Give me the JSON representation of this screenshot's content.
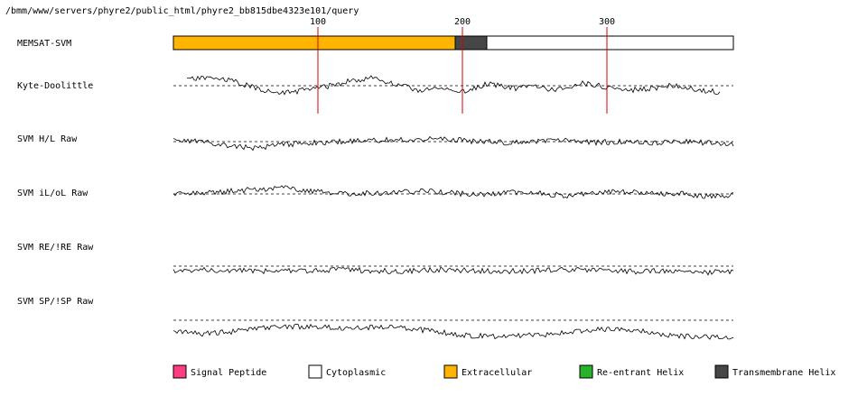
{
  "header": {
    "path": "/bmm/www/servers/phyre2/public_html/phyre2_bb815dbe4323e101/query"
  },
  "ticks": [
    "100",
    "200",
    "300"
  ],
  "tracks": [
    {
      "key": "memsat",
      "label": "MEMSAT-SVM"
    },
    {
      "key": "kd",
      "label": "Kyte-Doolittle"
    },
    {
      "key": "hl",
      "label": "SVM H/L Raw"
    },
    {
      "key": "ilol",
      "label": "SVM iL/oL Raw"
    },
    {
      "key": "reire",
      "label": "SVM RE/!RE Raw"
    },
    {
      "key": "spisp",
      "label": "SVM SP/!SP Raw"
    }
  ],
  "topology": [
    {
      "type": "Extracellular",
      "start": 1,
      "end": 195
    },
    {
      "type": "Transmembrane Helix",
      "start": 196,
      "end": 217
    },
    {
      "type": "Cytoplasmic",
      "start": 218,
      "end": 388
    }
  ],
  "legend": [
    {
      "key": "signal",
      "label": "Signal Peptide",
      "color": "#ff3c82"
    },
    {
      "key": "cyto",
      "label": "Cytoplasmic",
      "color": "#ffffff"
    },
    {
      "key": "extra",
      "label": "Extracellular",
      "color": "#ffb400"
    },
    {
      "key": "reentrant",
      "label": "Re-entrant Helix",
      "color": "#28b428"
    },
    {
      "key": "tm",
      "label": "Transmembrane Helix",
      "color": "#464646"
    }
  ],
  "colors": {
    "marker": "#dd0000",
    "trace": "#000000",
    "baseline": "#000000"
  }
}
